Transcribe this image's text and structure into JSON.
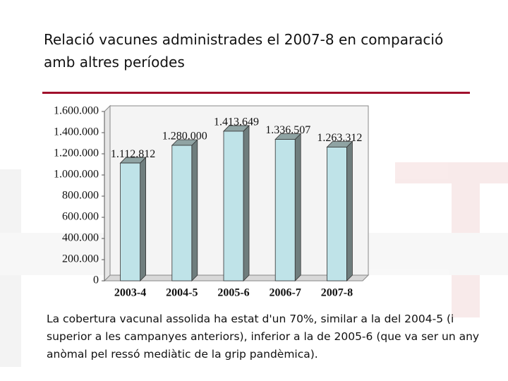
{
  "title": "Relació vacunes administrades el 2007-8 en comparació amb altres períodes",
  "note": "La cobertura vacunal assolida ha estat d'un 70%, similar a la del 2004-5 (i superior a les campanyes anteriors), inferior a la de 2005-6 (que va ser un any anòmal pel ressó mediàtic de la grip pandèmica).",
  "chart_data": {
    "type": "bar",
    "categories": [
      "2003-4",
      "2004-5",
      "2005-6",
      "2006-7",
      "2007-8"
    ],
    "values": [
      1112812,
      1280000,
      1413649,
      1336507,
      1263312
    ],
    "value_labels": [
      "1.112.812",
      "1.280.000",
      "1.413.649",
      "1.336.507",
      "1.263.312"
    ],
    "color": "#bfe3e8",
    "ylim": [
      0,
      1600000
    ],
    "yticks": [
      0,
      {
        "value": 200000,
        "label": "200.000"
      },
      {
        "value": 400000,
        "label": "400.000"
      },
      {
        "value": 600000,
        "label": "600.000"
      },
      {
        "value": 800000,
        "label": "800.000"
      },
      {
        "value": 1000000,
        "label": "1.000.000"
      },
      {
        "value": 1200000,
        "label": "1.200.000"
      },
      {
        "value": 1400000,
        "label": "1.400.000"
      },
      {
        "value": 1600000,
        "label": "1.600.000"
      }
    ],
    "grid": false
  }
}
